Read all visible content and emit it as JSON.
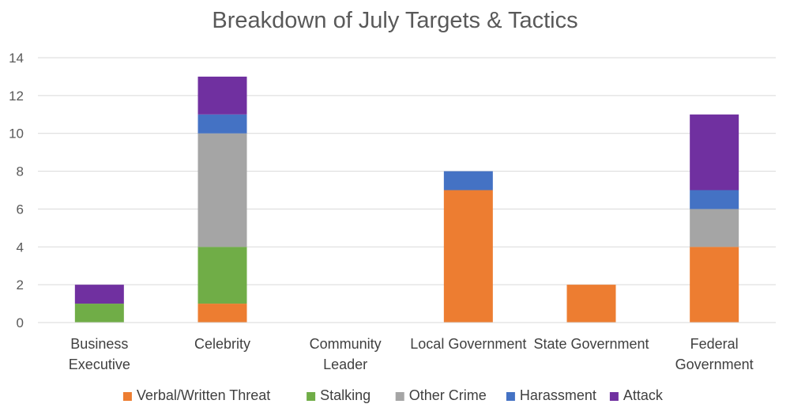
{
  "chart_data": {
    "type": "bar",
    "stacked": true,
    "title": "Breakdown of July Targets & Tactics",
    "xlabel": "",
    "ylabel": "",
    "ylim": [
      0,
      14
    ],
    "yticks": [
      0,
      2,
      4,
      6,
      8,
      10,
      12,
      14
    ],
    "grid": true,
    "legend_position": "bottom",
    "categories": [
      [
        "Business",
        "Executive"
      ],
      [
        "Celebrity"
      ],
      [
        "Community",
        "Leader"
      ],
      [
        "Local Government"
      ],
      [
        "State Government"
      ],
      [
        "Federal",
        "Government"
      ]
    ],
    "series": [
      {
        "name": "Verbal/Written Threat",
        "color": "#ED7D31",
        "values": [
          0,
          1,
          0,
          7,
          2,
          4
        ]
      },
      {
        "name": "Stalking",
        "color": "#70AD47",
        "values": [
          1,
          3,
          0,
          0,
          0,
          0
        ]
      },
      {
        "name": "Other Crime",
        "color": "#A5A5A5",
        "values": [
          0,
          6,
          0,
          0,
          0,
          2
        ]
      },
      {
        "name": "Harassment",
        "color": "#4472C4",
        "values": [
          0,
          1,
          0,
          1,
          0,
          1
        ]
      },
      {
        "name": "Attack",
        "color": "#7030A0",
        "values": [
          1,
          2,
          0,
          0,
          0,
          4
        ]
      }
    ],
    "colors": {
      "gridline": "#D9D9D9",
      "axis_line": "#D9D9D9",
      "text": "#595959"
    }
  }
}
